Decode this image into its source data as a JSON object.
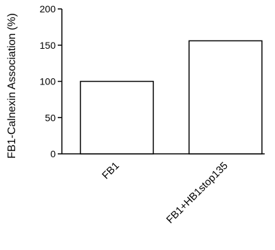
{
  "chart_data": {
    "type": "bar",
    "title": "",
    "xlabel": "",
    "ylabel": "FB1-Calnexin Association (%)",
    "categories": [
      "FB1",
      "FB1+HB1stop135"
    ],
    "values": [
      100,
      156
    ],
    "ylim": [
      0,
      200
    ],
    "yticks": [
      "0",
      "50",
      "100",
      "150",
      "200"
    ],
    "grid": false,
    "legend": "none",
    "bar_fill": "#ffffff",
    "bar_stroke": "#000000"
  }
}
